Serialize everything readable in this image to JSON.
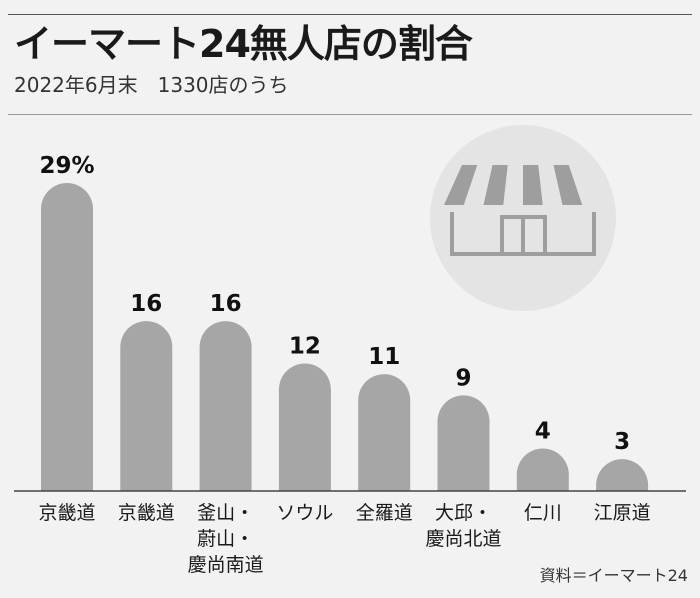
{
  "header": {
    "title": "イーマート24無人店の割合",
    "subtitle": "2022年6月末　1330店のうち"
  },
  "source": "資料＝イーマート24",
  "icons": {
    "store": "store-icon"
  },
  "colors": {
    "bar": "#a6a6a6",
    "background": "#f2f2f2",
    "icon_circle": "#e4e4e4",
    "icon_stroke": "#9e9e9e"
  },
  "chart_data": {
    "type": "bar",
    "unit": "%",
    "categories": [
      [
        "京畿道"
      ],
      [
        "京畿道"
      ],
      [
        "釜山・",
        "蔚山・",
        "慶尚南道"
      ],
      [
        "ソウル"
      ],
      [
        "全羅道"
      ],
      [
        "大邱・",
        "慶尚北道"
      ],
      [
        "仁川"
      ],
      [
        "江原道"
      ]
    ],
    "values": [
      29,
      16,
      16,
      12,
      11,
      9,
      4,
      3
    ],
    "value_labels": [
      "29%",
      "16",
      "16",
      "12",
      "11",
      "9",
      "4",
      "3"
    ],
    "ylim": [
      0,
      29
    ],
    "grid": false,
    "legend": "none"
  }
}
